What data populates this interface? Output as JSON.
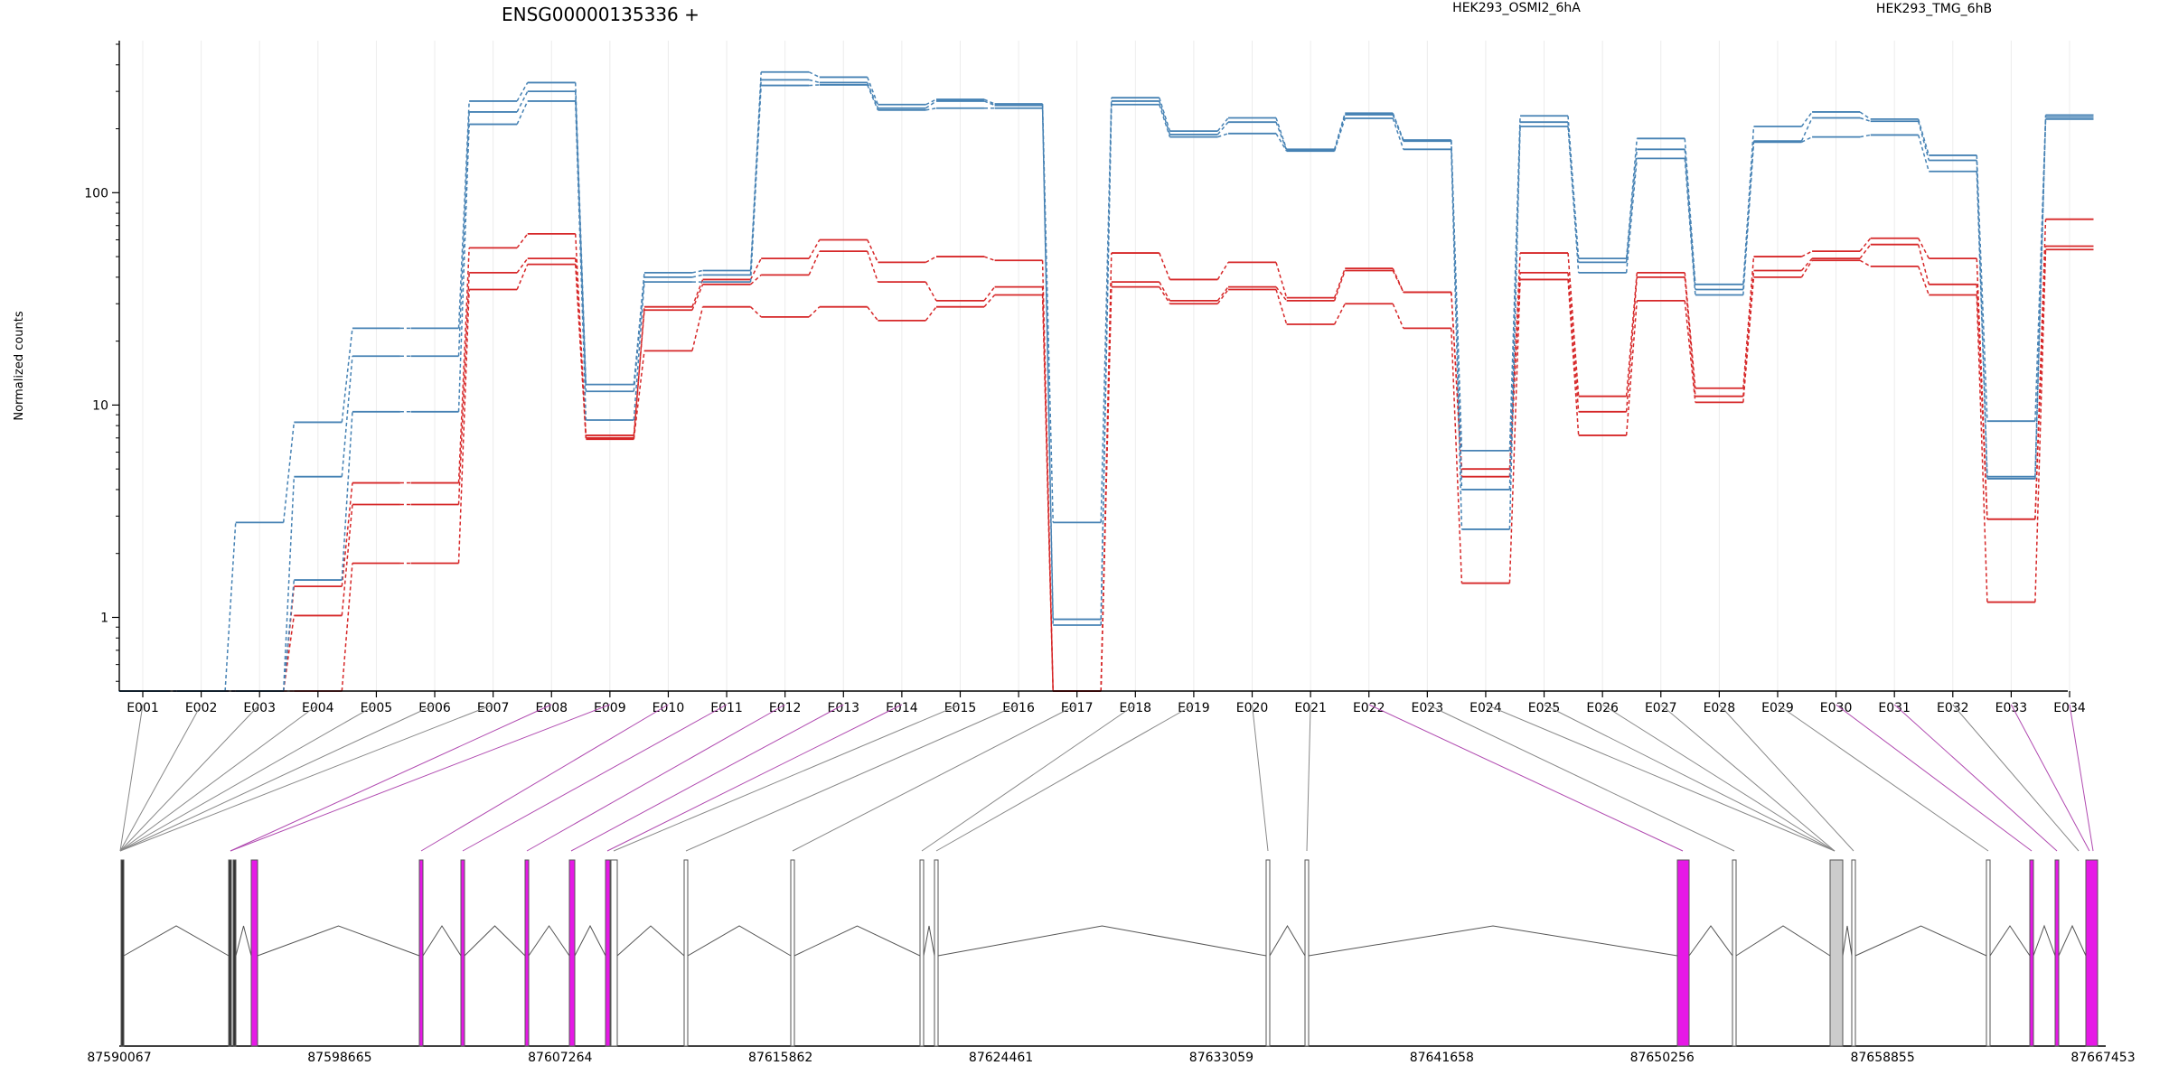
{
  "chart_data": {
    "type": "line",
    "title": "ENSG00000135336 +",
    "ylabel": "Normalized counts",
    "yscale": "log",
    "ylim": [
      0.45,
      520
    ],
    "yticks": [
      1,
      10,
      100
    ],
    "ytick_labels": [
      "1",
      "10",
      "100"
    ],
    "categories": [
      "E001",
      "E002",
      "E003",
      "E004",
      "E005",
      "E006",
      "E007",
      "E008",
      "E009",
      "E010",
      "E011",
      "E012",
      "E013",
      "E014",
      "E015",
      "E016",
      "E017",
      "E018",
      "E019",
      "E020",
      "E021",
      "E022",
      "E023",
      "E024",
      "E025",
      "E026",
      "E027",
      "E028",
      "E029",
      "E030",
      "E031",
      "E032",
      "E033",
      "E034"
    ],
    "grid": true,
    "legend_position": "top",
    "series_groups": [
      {
        "name": "HEK293_OSMI2_6hA",
        "color": "#d62728",
        "series": [
          {
            "values": [
              0.45,
              0.45,
              0.45,
              1.4,
              4.3,
              4.3,
              55,
              64,
              7.0,
              29,
              39,
              49,
              60,
              47,
              50,
              48,
              0.45,
              52,
              39,
              47,
              32,
              44,
              34,
              5.0,
              52,
              11,
              42,
              12,
              50,
              53,
              61,
              49,
              2.9,
              75
            ]
          },
          {
            "values": [
              0.45,
              0.45,
              0.45,
              1.02,
              3.4,
              3.4,
              42,
              49,
              7.2,
              28,
              37,
              41,
              53,
              38,
              31,
              36,
              0.45,
              38,
              31,
              36,
              31,
              43,
              34,
              4.6,
              42,
              9.3,
              40,
              11,
              43,
              49,
              57,
              37,
              2.9,
              56
            ]
          },
          {
            "values": [
              0.45,
              0.45,
              0.45,
              0.45,
              1.8,
              1.8,
              35,
              46,
              6.9,
              18,
              29,
              26,
              29,
              25,
              29,
              33,
              0.45,
              36,
              30,
              35,
              24,
              30,
              23,
              1.45,
              39,
              7.2,
              31,
              10.3,
              40,
              48,
              45,
              33,
              1.18,
              54
            ]
          }
        ]
      },
      {
        "name": "HEK293_TMG_6hB",
        "color": "#4682b4",
        "series": [
          {
            "values": [
              0.45,
              0.45,
              2.8,
              8.3,
              23,
              23,
              270,
              330,
              12.5,
              42,
              43,
              370,
              350,
              260,
              275,
              262,
              2.8,
              280,
              195,
              225,
              160,
              237,
              177,
              6.1,
              230,
              49,
              180,
              37,
              205,
              240,
              222,
              150,
              8.4,
              232
            ]
          },
          {
            "values": [
              0.45,
              0.45,
              0.45,
              4.6,
              17,
              17,
              240,
              300,
              11.6,
              40,
              41,
              340,
              330,
              250,
              270,
              258,
              0.98,
              270,
              188,
              215,
              158,
              233,
              175,
              4.0,
              215,
              47,
              160,
              35,
              175,
              225,
              217,
              142,
              4.6,
              227
            ]
          },
          {
            "values": [
              0.45,
              0.45,
              0.45,
              1.5,
              9.3,
              9.3,
              210,
              270,
              8.5,
              38,
              38,
              320,
              322,
              245,
              250,
              250,
              0.92,
              260,
              183,
              190,
              157,
              224,
              160,
              2.6,
              205,
              42,
              145,
              33,
              173,
              183,
              187,
              126,
              4.5,
              222
            ]
          }
        ]
      }
    ],
    "gene_model": {
      "coord_ticks": [
        "87590067",
        "87598665",
        "87607264",
        "87615862",
        "87624461",
        "87633059",
        "87641658",
        "87650256",
        "87658855",
        "87667453"
      ]
    }
  }
}
